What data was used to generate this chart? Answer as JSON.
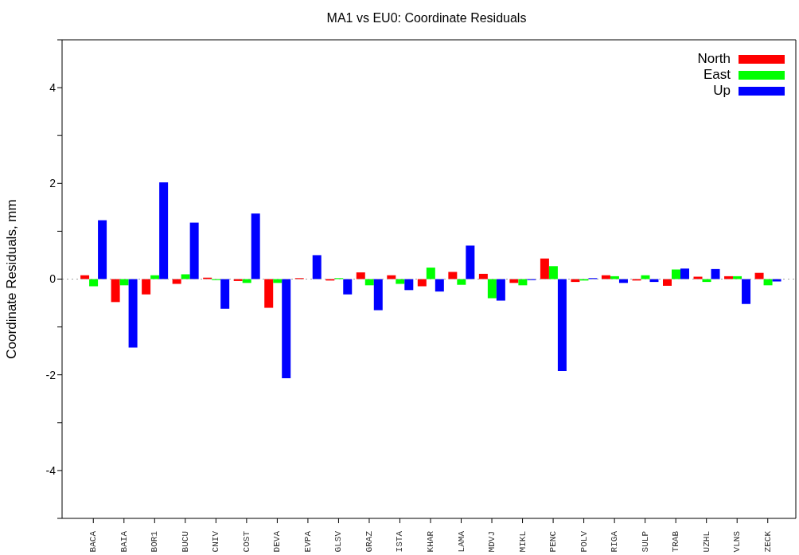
{
  "chart_data": {
    "type": "bar",
    "title": "MA1 vs EU0: Coordinate Residuals",
    "ylabel": "Coordinate Residuals, mm",
    "categories": [
      "BACA",
      "BAIA",
      "BOR1",
      "BUCU",
      "CNIV",
      "COST",
      "DEVA",
      "EVPA",
      "GLSV",
      "GRAZ",
      "ISTA",
      "KHAR",
      "LAMA",
      "MDVJ",
      "MIKL",
      "PENC",
      "POLV",
      "RIGA",
      "SULP",
      "TRAB",
      "UZHL",
      "VLNS",
      "ZECK"
    ],
    "series": [
      {
        "name": "North",
        "color": "#ff0000",
        "values": [
          0.08,
          -0.48,
          -0.32,
          -0.1,
          0.03,
          -0.04,
          -0.6,
          0.02,
          -0.03,
          0.14,
          0.08,
          -0.15,
          0.15,
          0.11,
          -0.08,
          0.43,
          -0.06,
          0.08,
          -0.03,
          -0.14,
          0.05,
          0.06,
          0.13
        ]
      },
      {
        "name": "East",
        "color": "#00ff00",
        "values": [
          -0.15,
          -0.13,
          0.08,
          0.1,
          -0.02,
          -0.08,
          -0.08,
          null,
          0.02,
          -0.13,
          -0.1,
          0.24,
          -0.12,
          -0.4,
          -0.13,
          0.27,
          -0.03,
          0.06,
          0.08,
          0.2,
          -0.06,
          0.06,
          -0.13
        ]
      },
      {
        "name": "Up",
        "color": "#0000ff",
        "values": [
          1.23,
          -1.43,
          2.02,
          1.18,
          -0.62,
          1.37,
          -2.07,
          0.5,
          -0.32,
          -0.65,
          -0.23,
          -0.26,
          0.7,
          -0.45,
          -0.02,
          -1.92,
          0.02,
          -0.08,
          -0.06,
          0.22,
          0.21,
          -0.52,
          -0.05
        ]
      }
    ],
    "ylim": [
      -5,
      5
    ],
    "yticks": [
      {
        "value": -5,
        "label": null
      },
      -4,
      {
        "value": -3,
        "label": null
      },
      -2,
      {
        "value": -1,
        "label": null
      },
      0,
      {
        "value": 1,
        "label": null
      },
      2,
      {
        "value": 3,
        "label": null
      },
      4,
      {
        "value": 5,
        "label": null
      }
    ],
    "ref_lines": [
      {
        "axis": "y",
        "value": 0,
        "color": "#a0a0a0",
        "line_style": "dotted"
      }
    ],
    "legend": "top right"
  }
}
